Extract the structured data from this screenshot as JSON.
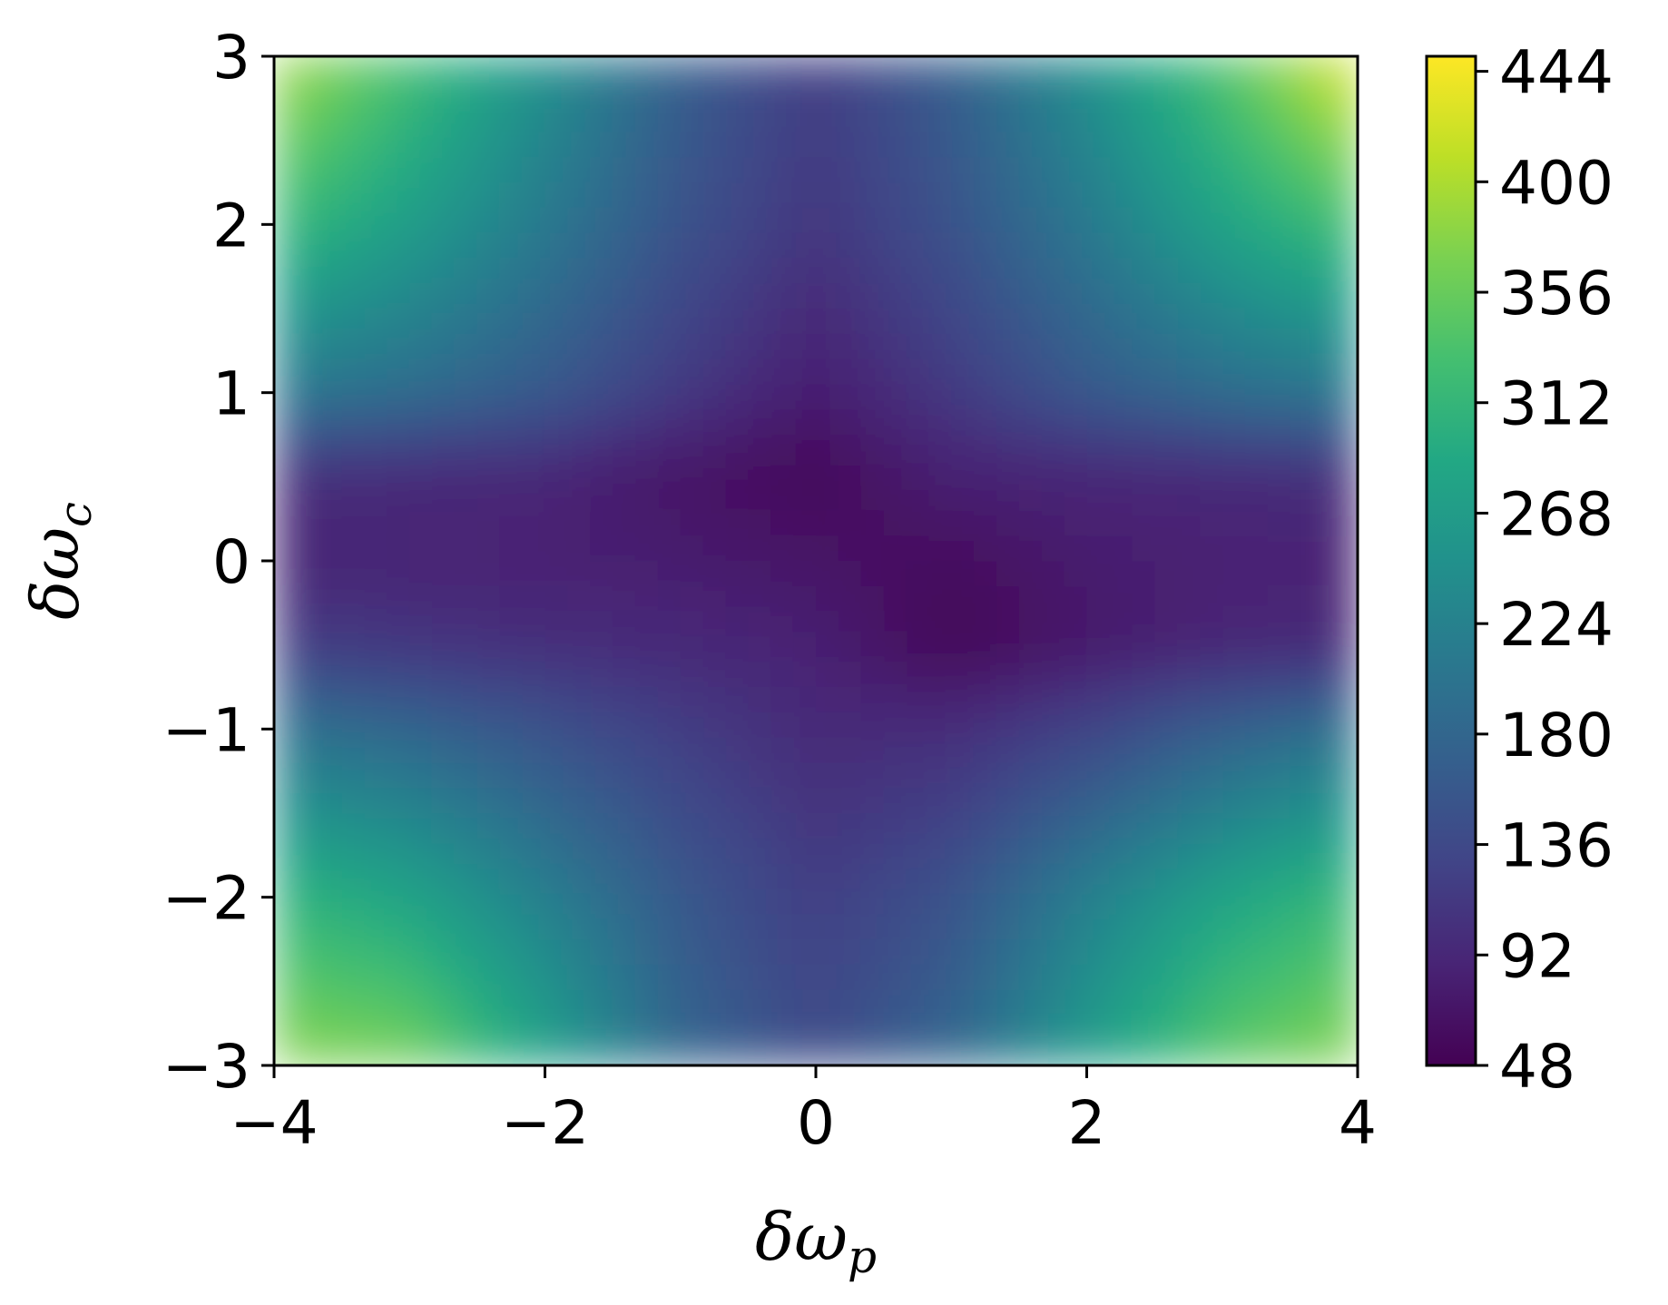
{
  "chart_data": {
    "type": "heatmap",
    "title": "",
    "xlabel": "δω",
    "xlabel_sub": "p",
    "ylabel": "δω",
    "ylabel_sub": "c",
    "xlim": [
      -4,
      4
    ],
    "ylim": [
      -3,
      3
    ],
    "x_ticks": [
      -4,
      -2,
      0,
      2,
      4
    ],
    "x_tick_labels": [
      "−4",
      "−2",
      "0",
      "2",
      "4"
    ],
    "y_ticks": [
      -3,
      -2,
      -1,
      0,
      1,
      2,
      3
    ],
    "y_tick_labels": [
      "−3",
      "−2",
      "−1",
      "0",
      "1",
      "2",
      "3"
    ],
    "colormap": "viridis",
    "colorbar": {
      "range": [
        48,
        450
      ],
      "ticks": [
        48,
        92,
        136,
        180,
        224,
        268,
        312,
        356,
        400,
        444
      ],
      "tick_labels": [
        "48",
        "92",
        "136",
        "180",
        "224",
        "268",
        "312",
        "356",
        "400",
        "444"
      ]
    },
    "grid": false,
    "x": [
      -4,
      -3,
      -2,
      -1,
      0,
      1,
      2,
      3,
      4
    ],
    "y": [
      3,
      2,
      1,
      0.5,
      0,
      -0.5,
      -1,
      -2,
      -3
    ],
    "z": [
      [
        400,
        330,
        250,
        170,
        120,
        170,
        250,
        340,
        440
      ],
      [
        320,
        270,
        210,
        150,
        110,
        150,
        210,
        280,
        330
      ],
      [
        210,
        190,
        160,
        115,
        80,
        115,
        160,
        190,
        210
      ],
      [
        100,
        95,
        90,
        70,
        55,
        85,
        90,
        95,
        100
      ],
      [
        90,
        88,
        85,
        80,
        70,
        60,
        80,
        85,
        88
      ],
      [
        120,
        110,
        100,
        95,
        85,
        52,
        75,
        90,
        95
      ],
      [
        200,
        180,
        150,
        120,
        95,
        100,
        130,
        170,
        200
      ],
      [
        310,
        280,
        220,
        160,
        120,
        150,
        220,
        280,
        320
      ],
      [
        380,
        370,
        280,
        180,
        140,
        180,
        270,
        350,
        380
      ]
    ]
  }
}
